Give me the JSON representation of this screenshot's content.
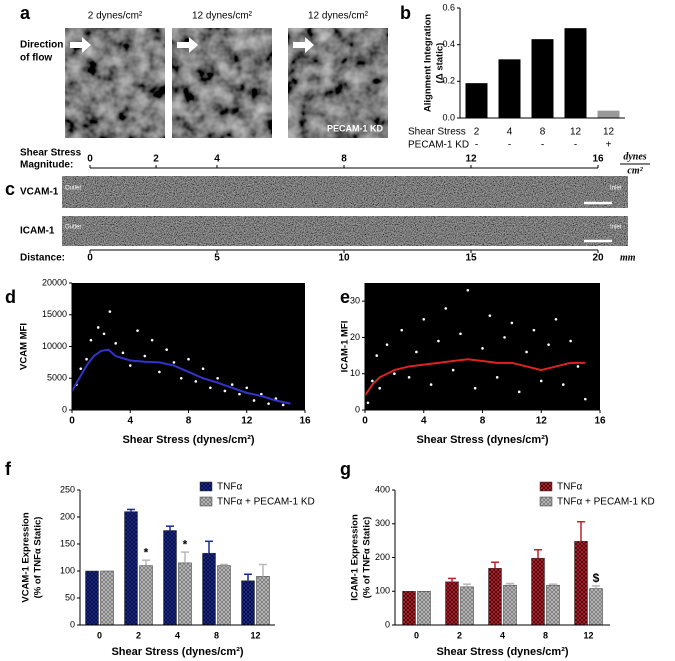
{
  "panel_labels": [
    "a",
    "b",
    "c",
    "d",
    "e",
    "f",
    "g"
  ],
  "panel_a": {
    "flow_label": [
      "Direction",
      "of flow"
    ],
    "image_titles": [
      "2 dynes/cm²",
      "12 dynes/cm²",
      "12 dynes/cm²"
    ],
    "kd_label": "PECAM-1 KD"
  },
  "panel_c": {
    "shear_label": [
      "Shear Stress",
      "Magnitude:"
    ],
    "shear_ticks": [
      0,
      2,
      4,
      8,
      12,
      16
    ],
    "shear_tick_distances": [
      0,
      2.6,
      5,
      10,
      15,
      20
    ],
    "shear_unit": [
      "dynes",
      "cm²"
    ],
    "rows": [
      "VCAM-1",
      "ICAM-1"
    ],
    "outlet": "Outlet",
    "inlet": "Inlet",
    "distance_label": "Distance:",
    "xlim": [
      0,
      20
    ],
    "xticks": [
      0,
      5,
      10,
      15,
      20
    ],
    "distance_unit": "mm"
  },
  "chart_data": [
    {
      "type": "bar",
      "ylabel": [
        "Alignment Integration",
        "(Δ static)"
      ],
      "categories": [
        "2",
        "4",
        "8",
        "12",
        "12"
      ],
      "kd_row": [
        "-",
        "-",
        "-",
        "-",
        "+"
      ],
      "row_labels": [
        "Shear  Stress",
        "PECAM-1 KD"
      ],
      "values": [
        0.19,
        0.32,
        0.43,
        0.49,
        0.04
      ],
      "colors": [
        "#000000",
        "#000000",
        "#000000",
        "#000000",
        "#999999"
      ],
      "ylim": [
        0,
        0.6
      ],
      "yticks": [
        {
          "value": 0,
          "label": "0.0"
        },
        0.2,
        0.4,
        0.6
      ]
    },
    {
      "type": "scatter",
      "ylabel": "VCAM MFI",
      "xlabel": "Shear  Stress (dynes/cm²)",
      "background": "#000000",
      "xlim": [
        0,
        16
      ],
      "xticks": [
        0,
        4,
        8,
        12,
        16
      ],
      "ylim": [
        0,
        20000
      ],
      "yticks": [
        0,
        5000,
        10000,
        15000,
        20000
      ],
      "series": [
        {
          "mode": "markers",
          "color": "#ffffff",
          "x": [
            0.3,
            0.6,
            1,
            1.3,
            1.8,
            2.2,
            2.6,
            3,
            3.5,
            4,
            4.5,
            5,
            5.5,
            6,
            6.5,
            7,
            7.5,
            8,
            8.5,
            9,
            9.5,
            10,
            10.5,
            11,
            11.5,
            12,
            12.5,
            13,
            13.5,
            14,
            14.5
          ],
          "values": [
            4000,
            6500,
            8000,
            11000,
            13000,
            12000,
            15500,
            10500,
            9000,
            7000,
            12500,
            8500,
            11000,
            6000,
            9500,
            7500,
            5000,
            8000,
            4500,
            6500,
            3500,
            5000,
            3000,
            4000,
            2500,
            3500,
            1500,
            2500,
            1000,
            1800,
            800
          ]
        },
        {
          "mode": "line",
          "color": "#3333cc",
          "x": [
            0,
            0.5,
            1,
            1.5,
            2,
            2.5,
            3,
            4,
            5,
            6,
            7,
            8,
            9,
            10,
            11,
            12,
            13,
            14,
            15
          ],
          "values": [
            3000,
            5000,
            7000,
            8500,
            9300,
            9500,
            8500,
            7800,
            7600,
            7500,
            7000,
            6000,
            5000,
            4300,
            3500,
            2700,
            2200,
            1500,
            1000
          ]
        }
      ]
    },
    {
      "type": "scatter",
      "ylabel": "ICAM-1 MFI",
      "xlabel": "Shear  Stress (dynes/cm²)",
      "background": "#000000",
      "xlim": [
        0,
        16
      ],
      "xticks": [
        0,
        4,
        8,
        12,
        16
      ],
      "ylim": [
        0,
        35
      ],
      "yticks": [
        0,
        10,
        20,
        30
      ],
      "series": [
        {
          "mode": "markers",
          "color": "#ffffff",
          "x": [
            0.2,
            0.5,
            0.8,
            1,
            1.5,
            2,
            2.5,
            3,
            3.5,
            4,
            4.5,
            5,
            5.5,
            6,
            6.5,
            7,
            7.5,
            8,
            8.5,
            9,
            9.5,
            10,
            10.5,
            11,
            11.5,
            12,
            12.5,
            13,
            13.5,
            14,
            14.5,
            15
          ],
          "values": [
            2,
            8,
            15,
            6,
            18,
            10,
            22,
            9,
            16,
            25,
            7,
            19,
            28,
            11,
            21,
            33,
            6,
            17,
            26,
            9,
            20,
            24,
            5,
            16,
            22,
            8,
            18,
            25,
            7,
            19,
            12,
            3
          ]
        },
        {
          "mode": "line",
          "color": "#dd2222",
          "x": [
            0,
            0.5,
            1,
            2,
            3,
            4,
            5,
            6,
            7,
            8,
            9,
            10,
            11,
            12,
            13,
            14,
            15
          ],
          "values": [
            4,
            7,
            9,
            11,
            12,
            12.5,
            13,
            13.5,
            14,
            13.5,
            13,
            13,
            12,
            11,
            12,
            13,
            13
          ]
        }
      ]
    },
    {
      "type": "bar",
      "ylabel": [
        "VCAM-1 Expression",
        "(% of TNFα Static)"
      ],
      "xlabel": "Shear  Stress (dynes/cm²)",
      "categories": [
        "0",
        "2",
        "4",
        "8",
        "12"
      ],
      "ylim": [
        0,
        250
      ],
      "yticks": [
        0,
        50,
        100,
        150,
        200,
        250
      ],
      "series": [
        {
          "name": "TNFα",
          "color": "#1a2a9a",
          "values": [
            100,
            210,
            175,
            133,
            82
          ],
          "errors": [
            0,
            4,
            8,
            22,
            12
          ]
        },
        {
          "name": "TNFα + PECAM-1 KD",
          "color": "#b8b8b8",
          "values": [
            100,
            110,
            115,
            110,
            90
          ],
          "errors": [
            0,
            10,
            20,
            2,
            22
          ]
        }
      ],
      "annotations": [
        {
          "text": "*",
          "category": "2"
        },
        {
          "text": "*",
          "category": "4"
        }
      ]
    },
    {
      "type": "bar",
      "ylabel": [
        "ICAM-1 Expression",
        "(% of TNFα Static)"
      ],
      "xlabel": "Shear  Stress (dynes/cm²)",
      "categories": [
        "0",
        "2",
        "4",
        "8",
        "12"
      ],
      "ylim": [
        0,
        400
      ],
      "yticks": [
        0,
        100,
        200,
        300,
        400
      ],
      "series": [
        {
          "name": "TNFα",
          "color": "#c0202a",
          "values": [
            100,
            128,
            168,
            198,
            248
          ],
          "errors": [
            0,
            10,
            18,
            25,
            58
          ]
        },
        {
          "name": "TNFα + PECAM-1 KD",
          "color": "#b8b8b8",
          "values": [
            100,
            113,
            118,
            118,
            108
          ],
          "errors": [
            0,
            8,
            5,
            3,
            8
          ]
        }
      ],
      "annotations": [
        {
          "text": "$",
          "category": "12"
        }
      ]
    }
  ]
}
